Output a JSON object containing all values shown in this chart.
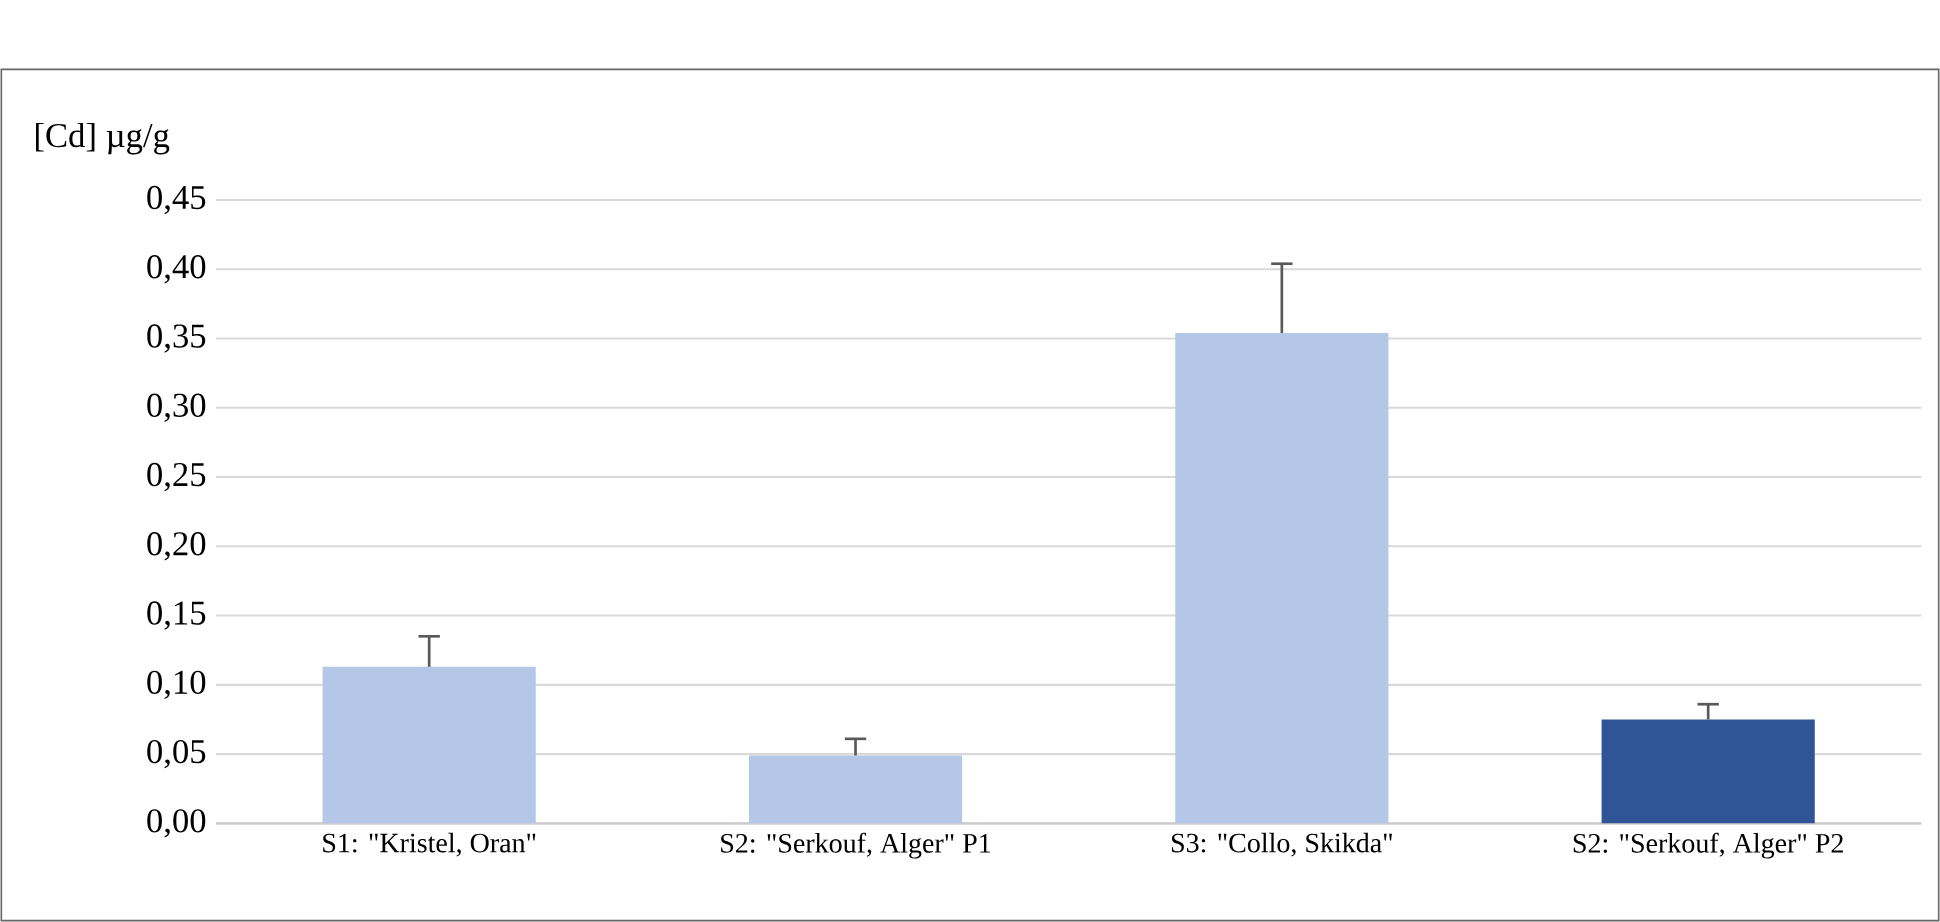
{
  "chart_data": {
    "type": "bar",
    "ylabel": "[Cd] µg/g",
    "categories": [
      "S1: \"Kristel, Oran\"",
      "S2: \"Serkouf, Alger\" P1",
      "S3: \"Collo, Skikda\"",
      "S2: \"Serkouf, Alger\" P2"
    ],
    "values": [
      0.113,
      0.049,
      0.354,
      0.075
    ],
    "errors": [
      [
        0.113,
        0.135
      ],
      [
        0.049,
        0.061
      ],
      [
        0.354,
        0.404
      ],
      [
        0.075,
        0.086
      ]
    ],
    "colors": [
      "#b4c7e7",
      "#b4c7e7",
      "#b4c7e7",
      "#2f5597"
    ],
    "ylim": [
      0,
      0.45
    ],
    "yticks": [
      {
        "value": 0,
        "label": "0,00"
      },
      {
        "value": 0.05,
        "label": "0,05"
      },
      {
        "value": 0.1,
        "label": "0,10"
      },
      {
        "value": 0.15,
        "label": "0,15"
      },
      {
        "value": 0.2,
        "label": "0,20"
      },
      {
        "value": 0.25,
        "label": "0,25"
      },
      {
        "value": 0.3,
        "label": "0,30"
      },
      {
        "value": 0.35,
        "label": "0,35"
      },
      {
        "value": 0.4,
        "label": "0,40"
      },
      {
        "value": 0.45,
        "label": "0,45"
      }
    ],
    "grid": "y"
  }
}
